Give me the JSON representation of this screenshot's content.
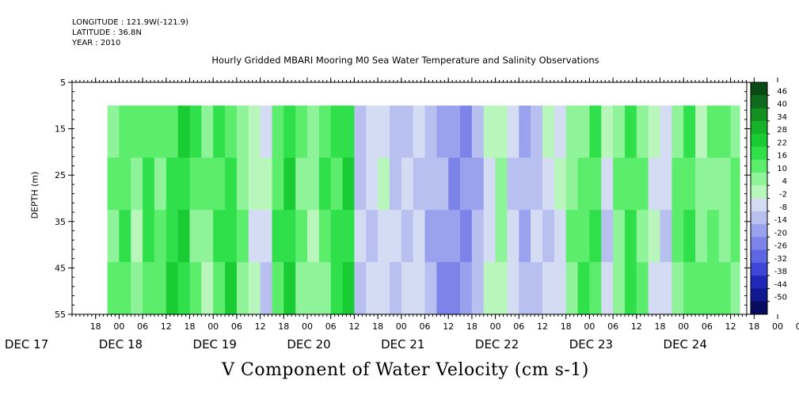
{
  "header": {
    "longitude": "LONGITUDE : 121.9W(-121.9)",
    "latitude": "LATITUDE : 36.8N",
    "year": "YEAR : 2010"
  },
  "chart_data": {
    "type": "heatmap",
    "title": "Hourly Gridded MBARI Mooring M0 Sea Water Temperature and Salinity Observations",
    "xlabel": "V Component of Water Velocity (cm s-1)",
    "ylabel": "DEPTH (m)",
    "y_ticks": [
      "5",
      "15",
      "25",
      "35",
      "45",
      "55"
    ],
    "ylim": [
      55,
      5
    ],
    "hour_ticks": [
      "18",
      "00",
      "06",
      "12",
      "18",
      "00",
      "06",
      "12",
      "18",
      "00",
      "06",
      "12",
      "18",
      "00",
      "06",
      "12",
      "18",
      "00",
      "06",
      "12",
      "18",
      "00",
      "06",
      "12",
      "18",
      "00",
      "06",
      "12",
      "18",
      "00",
      "06",
      "12"
    ],
    "day_labels": [
      "DEC 17",
      "DEC 18",
      "DEC 19",
      "DEC 20",
      "DEC 21",
      "DEC 22",
      "DEC 23",
      "DEC 24"
    ],
    "colorbar_labels": [
      "46",
      "40",
      "34",
      "28",
      "22",
      "16",
      "10",
      "4",
      "-2",
      "-8",
      "-14",
      "-20",
      "-26",
      "-32",
      "-38",
      "-44",
      "-50"
    ],
    "colorbar_colors": [
      "#0a4a14",
      "#0f6a1e",
      "#139020",
      "#16b22a",
      "#19cc33",
      "#2fe04a",
      "#5ded6d",
      "#8ff39a",
      "#b8f6bc",
      "#d4dcf4",
      "#b8c0f0",
      "#9aa2ee",
      "#7c84ea",
      "#5e66e4",
      "#3e46d8",
      "#2028b8",
      "#101890",
      "#080c60"
    ],
    "depth_range_shown": [
      10,
      55
    ],
    "time_bands": [
      {
        "t": "DEC 17 21",
        "v": 8
      },
      {
        "t": "DEC 18 00",
        "v": 14
      },
      {
        "t": "DEC 18 03",
        "v": 6
      },
      {
        "t": "DEC 18 06",
        "v": 16
      },
      {
        "t": "DEC 18 09",
        "v": 10
      },
      {
        "t": "DEC 18 12",
        "v": 18
      },
      {
        "t": "DEC 18 15",
        "v": 22
      },
      {
        "t": "DEC 18 18",
        "v": 12
      },
      {
        "t": "DEC 18 21",
        "v": 6
      },
      {
        "t": "DEC 19 00",
        "v": 14
      },
      {
        "t": "DEC 19 03",
        "v": 18
      },
      {
        "t": "DEC 19 06",
        "v": 8
      },
      {
        "t": "DEC 19 09",
        "v": -2
      },
      {
        "t": "DEC 19 12",
        "v": -6
      },
      {
        "t": "DEC 19 15",
        "v": 12
      },
      {
        "t": "DEC 19 18",
        "v": 20
      },
      {
        "t": "DEC 19 21",
        "v": 10
      },
      {
        "t": "DEC 20 00",
        "v": 4
      },
      {
        "t": "DEC 20 03",
        "v": 12
      },
      {
        "t": "DEC 20 06",
        "v": 16
      },
      {
        "t": "DEC 20 09",
        "v": 22
      },
      {
        "t": "DEC 20 12",
        "v": -10
      },
      {
        "t": "DEC 20 15",
        "v": -8
      },
      {
        "t": "DEC 20 18",
        "v": -4
      },
      {
        "t": "DEC 20 21",
        "v": -12
      },
      {
        "t": "DEC 21 00",
        "v": -10
      },
      {
        "t": "DEC 21 03",
        "v": -6
      },
      {
        "t": "DEC 21 06",
        "v": -14
      },
      {
        "t": "DEC 21 09",
        "v": -18
      },
      {
        "t": "DEC 21 12",
        "v": -22
      },
      {
        "t": "DEC 21 15",
        "v": -20
      },
      {
        "t": "DEC 21 18",
        "v": -12
      },
      {
        "t": "DEC 21 21",
        "v": -4
      },
      {
        "t": "DEC 22 00",
        "v": 4
      },
      {
        "t": "DEC 22 03",
        "v": -8
      },
      {
        "t": "DEC 22 06",
        "v": -16
      },
      {
        "t": "DEC 22 09",
        "v": -10
      },
      {
        "t": "DEC 22 12",
        "v": -6
      },
      {
        "t": "DEC 22 15",
        "v": -4
      },
      {
        "t": "DEC 22 18",
        "v": 6
      },
      {
        "t": "DEC 22 21",
        "v": 12
      },
      {
        "t": "DEC 23 00",
        "v": 16
      },
      {
        "t": "DEC 23 03",
        "v": -6
      },
      {
        "t": "DEC 23 06",
        "v": 8
      },
      {
        "t": "DEC 23 09",
        "v": 16
      },
      {
        "t": "DEC 23 12",
        "v": 10
      },
      {
        "t": "DEC 23 15",
        "v": -2
      },
      {
        "t": "DEC 23 18",
        "v": -8
      },
      {
        "t": "DEC 23 21",
        "v": 10
      },
      {
        "t": "DEC 24 00",
        "v": 14
      },
      {
        "t": "DEC 24 03",
        "v": 6
      },
      {
        "t": "DEC 24 06",
        "v": 12
      },
      {
        "t": "DEC 24 09",
        "v": 8
      },
      {
        "t": "DEC 24 12",
        "v": 10
      }
    ]
  }
}
